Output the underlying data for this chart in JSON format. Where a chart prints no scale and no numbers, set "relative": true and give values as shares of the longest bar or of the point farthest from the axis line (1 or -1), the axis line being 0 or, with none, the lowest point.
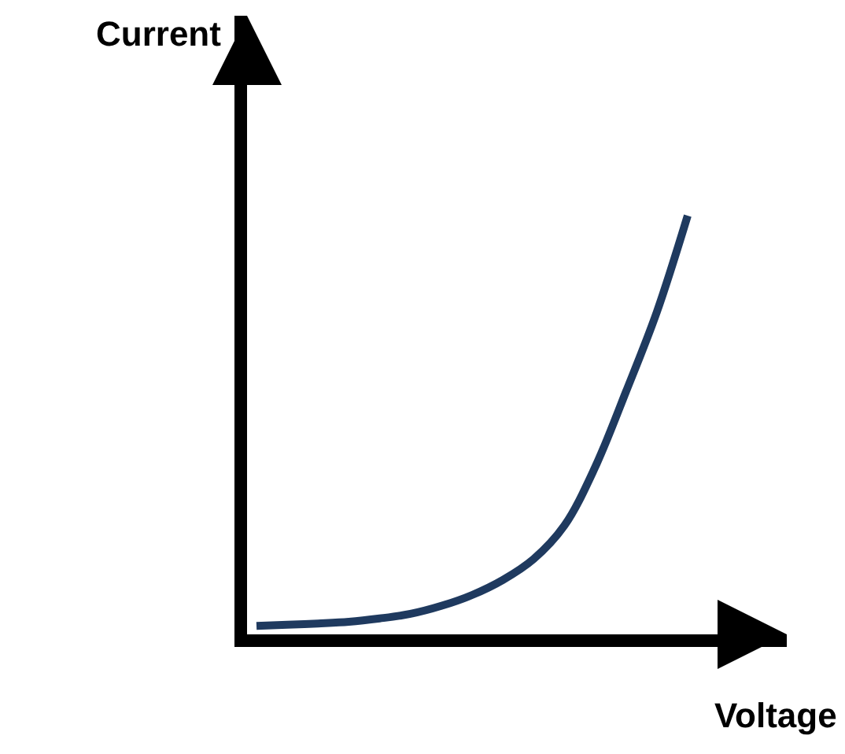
{
  "chart_data": {
    "type": "line",
    "relative": true,
    "xlabel": "Voltage",
    "ylabel": "Current",
    "categories": [
      null,
      null,
      null,
      null,
      null,
      null,
      null,
      null,
      null,
      null,
      null,
      null,
      null,
      null,
      null
    ],
    "series": [
      {
        "color": "#1f3a5f",
        "values": [
          0.02,
          0.023,
          0.026,
          0.03,
          0.038,
          0.049,
          0.068,
          0.094,
          0.13,
          0.18,
          0.26,
          0.4,
          0.58,
          0.77,
          1.0
        ]
      }
    ]
  }
}
